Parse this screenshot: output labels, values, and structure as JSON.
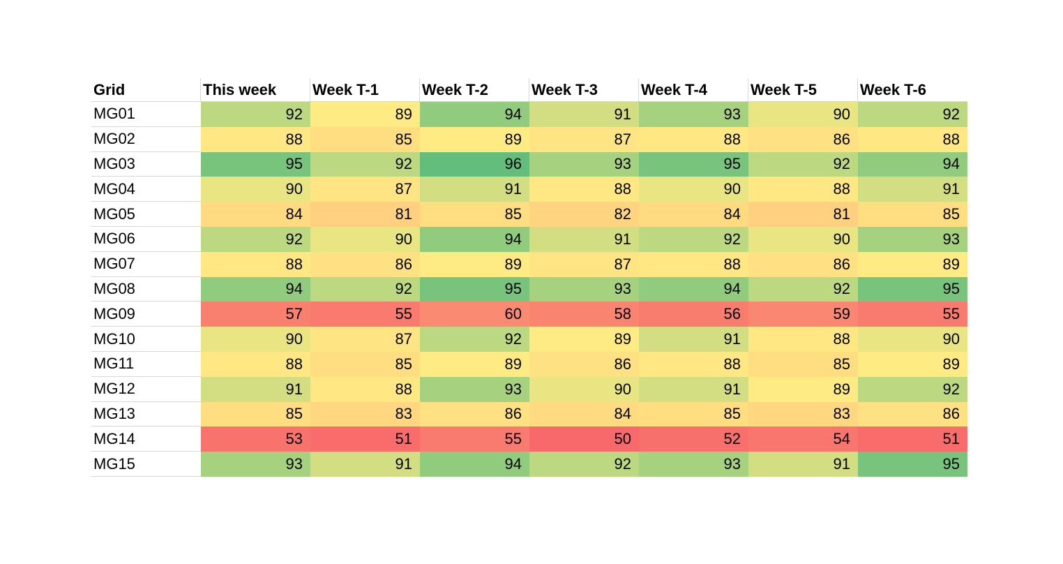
{
  "chart_data": {
    "type": "heatmap",
    "corner_label": "Grid",
    "columns": [
      "This week",
      "Week T-1",
      "Week T-2",
      "Week T-3",
      "Week T-4",
      "Week T-5",
      "Week T-6"
    ],
    "rows": [
      "MG01",
      "MG02",
      "MG03",
      "MG04",
      "MG05",
      "MG06",
      "MG07",
      "MG08",
      "MG09",
      "MG10",
      "MG11",
      "MG12",
      "MG13",
      "MG14",
      "MG15"
    ],
    "values": [
      [
        92,
        89,
        94,
        91,
        93,
        90,
        92
      ],
      [
        88,
        85,
        89,
        87,
        88,
        86,
        88
      ],
      [
        95,
        92,
        96,
        93,
        95,
        92,
        94
      ],
      [
        90,
        87,
        91,
        88,
        90,
        88,
        91
      ],
      [
        84,
        81,
        85,
        82,
        84,
        81,
        85
      ],
      [
        92,
        90,
        94,
        91,
        92,
        90,
        93
      ],
      [
        88,
        86,
        89,
        87,
        88,
        86,
        89
      ],
      [
        94,
        92,
        95,
        93,
        94,
        92,
        95
      ],
      [
        57,
        55,
        60,
        58,
        56,
        59,
        55
      ],
      [
        90,
        87,
        92,
        89,
        91,
        88,
        90
      ],
      [
        88,
        85,
        89,
        86,
        88,
        85,
        89
      ],
      [
        91,
        88,
        93,
        90,
        91,
        89,
        92
      ],
      [
        85,
        83,
        86,
        84,
        85,
        83,
        86
      ],
      [
        53,
        51,
        55,
        50,
        52,
        54,
        51
      ],
      [
        93,
        91,
        94,
        92,
        93,
        91,
        95
      ]
    ],
    "value_range": [
      50,
      96
    ],
    "color_scale": {
      "style": "3-color-red-yellow-green",
      "min_value": 50,
      "min_color": "#F8696B",
      "mid_value": 89,
      "mid_color": "#FFEB84",
      "max_value": 96,
      "max_color": "#63BE7B"
    },
    "text_color": "#000000",
    "gridline_color": "#d6d6d6",
    "header_background": "#ffffff",
    "row_label_background": "#ffffff",
    "legend_position": "none",
    "grid": "header-and-row-label-borders-only"
  }
}
